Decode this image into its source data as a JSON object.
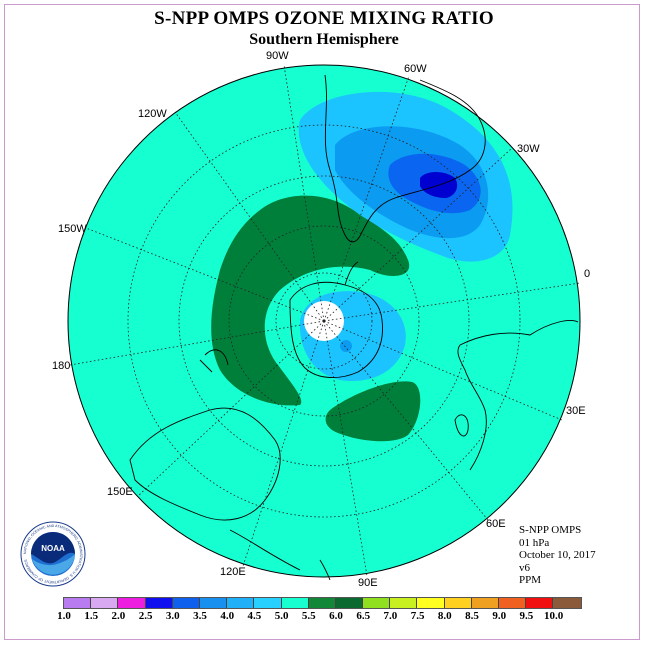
{
  "header": {
    "title": "S-NPP OMPS OZONE MIXING RATIO",
    "subtitle": "Southern Hemisphere"
  },
  "map": {
    "longitude_labels": [
      "90W",
      "60W",
      "120W",
      "30W",
      "150W",
      "0",
      "180",
      "30E",
      "150E",
      "60E",
      "120E",
      "90E"
    ],
    "colors": {
      "background_field": "#16ffd0",
      "dark_green": "#007f3a",
      "light_blue": "#1cc4ff",
      "mid_blue": "#0b9bf0",
      "blue": "#0a66f0",
      "deep_blue": "#0000d0",
      "pole_hole": "#ffffff"
    }
  },
  "info": {
    "instrument": "S-NPP OMPS",
    "level": "01 hPa",
    "date": "October 10, 2017",
    "version": "v6",
    "units": "PPM"
  },
  "colorbar": {
    "labels": [
      "1.0",
      "1.5",
      "2.0",
      "2.5",
      "3.0",
      "3.5",
      "4.0",
      "4.5",
      "5.0",
      "5.5",
      "6.0",
      "6.5",
      "7.0",
      "7.5",
      "8.0",
      "8.5",
      "9.0",
      "9.5",
      "10.0"
    ],
    "colors": [
      "#b97cf0",
      "#d8a8f0",
      "#ee1ee0",
      "#1010ee",
      "#1060ee",
      "#1890f0",
      "#20b0f8",
      "#28d0ff",
      "#18ffd0",
      "#108838",
      "#0a6a30",
      "#90e020",
      "#c8f020",
      "#ffff20",
      "#ffd020",
      "#f0a020",
      "#f06020",
      "#f01010",
      "#8a5a3a"
    ]
  },
  "logo": {
    "text": "NOAA",
    "ring_text": "NATIONAL OCEANIC AND ATMOSPHERIC ADMINISTRATION U.S. DEPARTMENT OF COMMERCE"
  }
}
